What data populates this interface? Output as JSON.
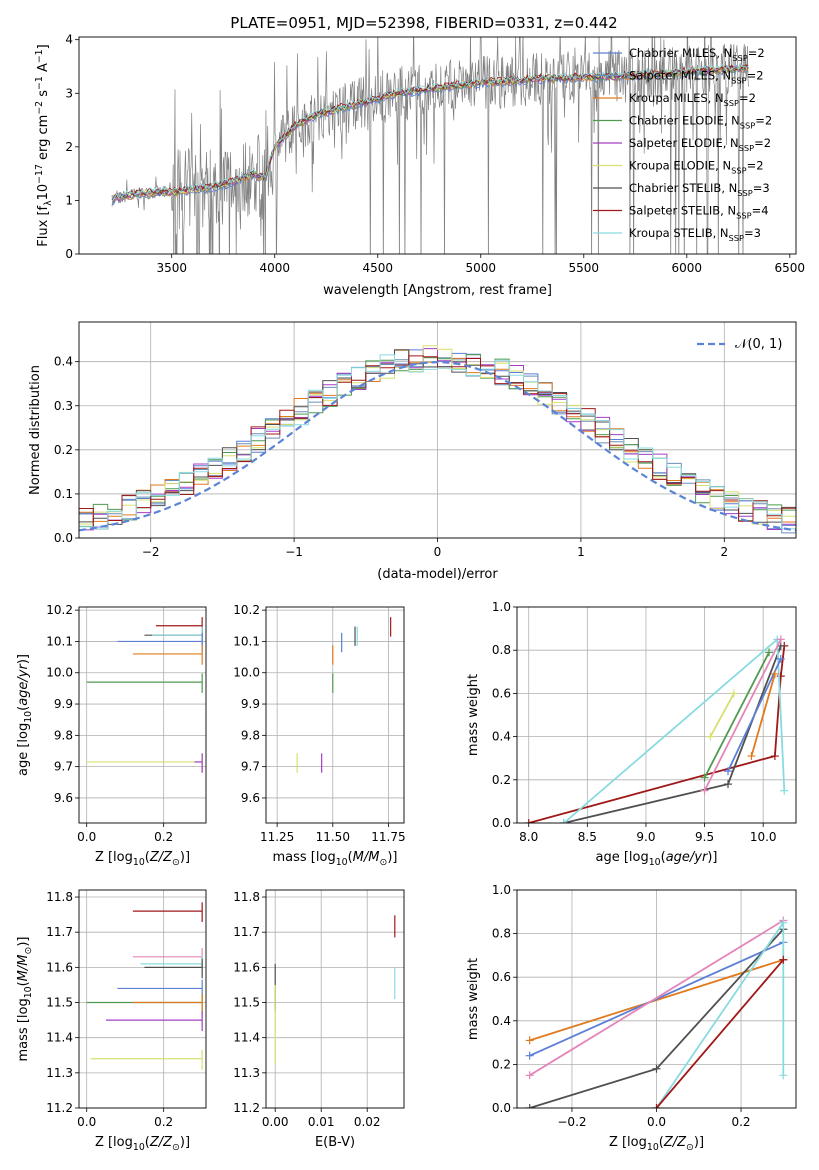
{
  "title": "PLATE=0951, MJD=52398, FIBERID=0331, z=0.442",
  "colors": {
    "chabrier_miles": "#5b7fd6",
    "salpeter_miles": "#6b8fb8",
    "kroupa_miles": "#e07a1f",
    "chabrier_elodie": "#4f9a4f",
    "salpeter_elodie": "#a43fc4",
    "kroupa_elodie": "#d8e070",
    "chabrier_stelib": "#505050",
    "salpeter_stelib": "#a01818",
    "kroupa_stelib": "#88dbe0",
    "data": "#808080",
    "normal": "#5b84d6",
    "pink": "#e585b8"
  },
  "chart_data": [
    {
      "type": "line",
      "xlabel": "wavelength [Angstrom, rest frame]",
      "ylabel": "Flux [f_λ10^-17 erg cm^-2 s^-1 A^-1]",
      "xlim": [
        3050,
        6530
      ],
      "ylim": [
        0,
        4.05
      ],
      "xticks": [
        "3500",
        "4000",
        "4500",
        "5000",
        "5500",
        "6000",
        "6500"
      ],
      "yticks": [
        "0",
        "1",
        "2",
        "3",
        "4"
      ],
      "legend": "top-right",
      "legend_entries": [
        "Chabrier MILES, N_SSP=2",
        "Salpeter MILES, N_SSP=2",
        "Kroupa MILES, N_SSP=2",
        "Chabrier ELODIE, N_SSP=2",
        "Salpeter ELODIE, N_SSP=2",
        "Kroupa ELODIE, N_SSP=2",
        "Chabrier STELIB, N_SSP=3",
        "Salpeter STELIB, N_SSP=4",
        "Kroupa STELIB, N_SSP=3"
      ],
      "model_continuum": {
        "x": [
          3200,
          3300,
          3400,
          3500,
          3600,
          3700,
          3800,
          3900,
          3950,
          4000,
          4100,
          4200,
          4300,
          4400,
          4500,
          4600,
          4700,
          4800,
          4900,
          5000,
          5100,
          5200,
          5300,
          5400,
          5500,
          5600,
          5700,
          5800,
          5900,
          6000,
          6100,
          6200,
          6300
        ],
        "y": [
          1.0,
          1.1,
          1.15,
          1.15,
          1.2,
          1.25,
          1.35,
          1.5,
          1.4,
          2.0,
          2.4,
          2.6,
          2.7,
          2.8,
          2.9,
          3.0,
          3.05,
          3.1,
          3.15,
          3.2,
          3.22,
          3.25,
          3.27,
          3.28,
          3.3,
          3.3,
          3.32,
          3.35,
          3.37,
          3.4,
          3.42,
          3.45,
          3.47
        ]
      }
    },
    {
      "type": "histogram",
      "xlabel": "(data-model)/error",
      "ylabel": "Normed distribution",
      "xlim": [
        -2.5,
        2.5
      ],
      "ylim": [
        0,
        0.49
      ],
      "xticks": [
        "−2",
        "−1",
        "0",
        "1",
        "2"
      ],
      "yticks": [
        "0.0",
        "0.1",
        "0.2",
        "0.3",
        "0.4"
      ],
      "legend": "top-right",
      "legend_entries": [
        "𝒩(0, 1)"
      ]
    },
    {
      "type": "scatter",
      "xlabel": "Z [log10(Z/Z⊙)]",
      "ylabel": "age [log10(age/yr)]",
      "xlim": [
        -0.02,
        0.31
      ],
      "ylim": [
        9.52,
        10.21
      ],
      "xticks": [
        "0.0",
        "0.2"
      ],
      "yticks": [
        "9.6",
        "9.7",
        "9.8",
        "9.9",
        "10.0",
        "10.1",
        "10.2"
      ],
      "points": [
        {
          "x": 0.3,
          "y": 10.15,
          "c": "salpeter_stelib",
          "xl": 0.12,
          "yl": 0.12
        },
        {
          "x": 0.3,
          "y": 10.12,
          "c": "chabrier_stelib",
          "xl": 0.15,
          "yl": 0.1
        },
        {
          "x": 0.3,
          "y": 10.12,
          "c": "kroupa_stelib",
          "xl": 0.13,
          "yl": 0.1
        },
        {
          "x": 0.3,
          "y": 10.1,
          "c": "chabrier_miles",
          "xl": 0.22,
          "yl": 0.3
        },
        {
          "x": 0.3,
          "y": 10.06,
          "c": "kroupa_miles",
          "xl": 0.18,
          "yl": 0.1
        },
        {
          "x": 0.3,
          "y": 9.97,
          "c": "chabrier_elodie",
          "xl": 0.3,
          "yl": 0.1
        },
        {
          "x": 0.3,
          "y": 9.715,
          "c": "kroupa_elodie",
          "xl": 0.3,
          "yl": 0.1
        },
        {
          "x": 0.3,
          "y": 9.715,
          "c": "salpeter_elodie",
          "xl": 0.02,
          "yl": 0.15
        }
      ]
    },
    {
      "type": "scatter",
      "xlabel": "mass [log10(M/M⊙)]",
      "ylabel": "",
      "xlim": [
        11.2,
        11.82
      ],
      "ylim": [
        9.52,
        10.21
      ],
      "xticks": [
        "11.25",
        "11.50",
        "11.75"
      ],
      "yticks": [
        "9.6",
        "9.7",
        "9.8",
        "9.9",
        "10.0",
        "10.1",
        "10.2"
      ],
      "points": [
        {
          "x": 11.76,
          "y": 10.15,
          "c": "salpeter_stelib"
        },
        {
          "x": 11.6,
          "y": 10.12,
          "c": "chabrier_stelib"
        },
        {
          "x": 11.61,
          "y": 10.12,
          "c": "kroupa_stelib"
        },
        {
          "x": 11.54,
          "y": 10.1,
          "c": "chabrier_miles"
        },
        {
          "x": 11.5,
          "y": 10.06,
          "c": "kroupa_miles"
        },
        {
          "x": 11.5,
          "y": 9.97,
          "c": "chabrier_elodie"
        },
        {
          "x": 11.34,
          "y": 9.715,
          "c": "kroupa_elodie"
        },
        {
          "x": 11.45,
          "y": 9.715,
          "c": "salpeter_elodie"
        }
      ]
    },
    {
      "type": "line",
      "xlabel": "age [log10(age/yr)]",
      "ylabel": "mass weight",
      "xlim": [
        7.9,
        10.28
      ],
      "ylim": [
        0,
        1.0
      ],
      "xticks": [
        "8.0",
        "8.5",
        "9.0",
        "9.5",
        "10.0"
      ],
      "yticks": [
        "0.0",
        "0.2",
        "0.4",
        "0.6",
        "0.8",
        "1.0"
      ],
      "series": [
        {
          "c": "salpeter_stelib",
          "x": [
            8.0,
            10.1,
            10.15,
            10.18
          ],
          "y": [
            0.0,
            0.31,
            0.68,
            0.82
          ]
        },
        {
          "c": "chabrier_stelib",
          "x": [
            8.3,
            9.7,
            10.15
          ],
          "y": [
            0.0,
            0.18,
            0.82
          ]
        },
        {
          "c": "kroupa_stelib",
          "x": [
            8.3,
            10.12,
            10.18
          ],
          "y": [
            0.0,
            0.85,
            0.15
          ]
        },
        {
          "c": "chabrier_miles",
          "x": [
            9.7,
            10.15
          ],
          "y": [
            0.24,
            0.76
          ]
        },
        {
          "c": "kroupa_miles",
          "x": [
            9.9,
            10.1
          ],
          "y": [
            0.31,
            0.69
          ]
        },
        {
          "c": "chabrier_elodie",
          "x": [
            9.5,
            10.05
          ],
          "y": [
            0.21,
            0.79
          ]
        },
        {
          "c": "pink",
          "x": [
            9.5,
            10.15
          ],
          "y": [
            0.15,
            0.85
          ]
        },
        {
          "c": "kroupa_elodie",
          "x": [
            9.55,
            9.75
          ],
          "y": [
            0.4,
            0.6
          ]
        }
      ]
    },
    {
      "type": "scatter",
      "xlabel": "Z [log10(Z/Z⊙)]",
      "ylabel": "mass [log10(M/M⊙)]",
      "xlim": [
        -0.02,
        0.31
      ],
      "ylim": [
        11.2,
        11.82
      ],
      "xticks": [
        "0.0",
        "0.2"
      ],
      "yticks": [
        "11.2",
        "11.3",
        "11.4",
        "11.5",
        "11.6",
        "11.7",
        "11.8"
      ],
      "points": [
        {
          "x": 0.3,
          "y": 11.76,
          "c": "salpeter_stelib",
          "xl": 0.18
        },
        {
          "x": 0.3,
          "y": 11.63,
          "c": "pink",
          "xl": 0.18
        },
        {
          "x": 0.3,
          "y": 11.61,
          "c": "kroupa_stelib",
          "xl": 0.16
        },
        {
          "x": 0.3,
          "y": 11.6,
          "c": "chabrier_stelib",
          "xl": 0.15
        },
        {
          "x": 0.3,
          "y": 11.54,
          "c": "chabrier_miles",
          "xl": 0.22
        },
        {
          "x": 0.3,
          "y": 11.5,
          "c": "chabrier_elodie",
          "xl": 0.3
        },
        {
          "x": 0.3,
          "y": 11.5,
          "c": "kroupa_miles",
          "xl": 0.18
        },
        {
          "x": 0.3,
          "y": 11.45,
          "c": "salpeter_elodie",
          "xl": 0.25
        },
        {
          "x": 0.3,
          "y": 11.34,
          "c": "kroupa_elodie",
          "xl": 0.29
        }
      ]
    },
    {
      "type": "scatter",
      "xlabel": "E(B-V)",
      "ylabel": "",
      "xlim": [
        -0.002,
        0.028
      ],
      "ylim": [
        11.2,
        11.82
      ],
      "xticks": [
        "0.00",
        "0.01",
        "0.02"
      ],
      "yticks": [
        "11.2",
        "11.3",
        "11.4",
        "11.5",
        "11.6",
        "11.7",
        "11.8"
      ],
      "points": [
        {
          "x": 0.0,
          "y": 11.55,
          "c": "chabrier_stelib",
          "yl": 0.15
        },
        {
          "x": 0.0,
          "y": 11.45,
          "c": "kroupa_elodie",
          "yl": 0.25
        },
        {
          "x": 0.026,
          "y": 11.72,
          "c": "salpeter_stelib",
          "yl": 0.07
        },
        {
          "x": 0.026,
          "y": 11.56,
          "c": "kroupa_stelib",
          "yl": 0.1
        }
      ]
    },
    {
      "type": "line",
      "xlabel": "Z [log10(Z/Z⊙)]",
      "ylabel": "mass weight",
      "xlim": [
        -0.33,
        0.33
      ],
      "ylim": [
        0,
        1.0
      ],
      "xticks": [
        "−0.2",
        "0.0",
        "0.2"
      ],
      "yticks": [
        "0.0",
        "0.2",
        "0.4",
        "0.6",
        "0.8",
        "1.0"
      ],
      "series": [
        {
          "c": "kroupa_miles",
          "x": [
            -0.3,
            0.3
          ],
          "y": [
            0.31,
            0.68
          ]
        },
        {
          "c": "chabrier_miles",
          "x": [
            -0.3,
            0.3
          ],
          "y": [
            0.24,
            0.76
          ]
        },
        {
          "c": "pink",
          "x": [
            -0.3,
            0.3
          ],
          "y": [
            0.15,
            0.86
          ]
        },
        {
          "c": "chabrier_stelib",
          "x": [
            -0.3,
            0.0,
            0.3
          ],
          "y": [
            0.0,
            0.18,
            0.82
          ]
        },
        {
          "c": "kroupa_stelib",
          "x": [
            0.0,
            0.3,
            0.3
          ],
          "y": [
            0.0,
            0.85,
            0.15
          ]
        },
        {
          "c": "salpeter_stelib",
          "x": [
            0.0,
            0.3
          ],
          "y": [
            0.0,
            0.68
          ]
        }
      ]
    }
  ]
}
